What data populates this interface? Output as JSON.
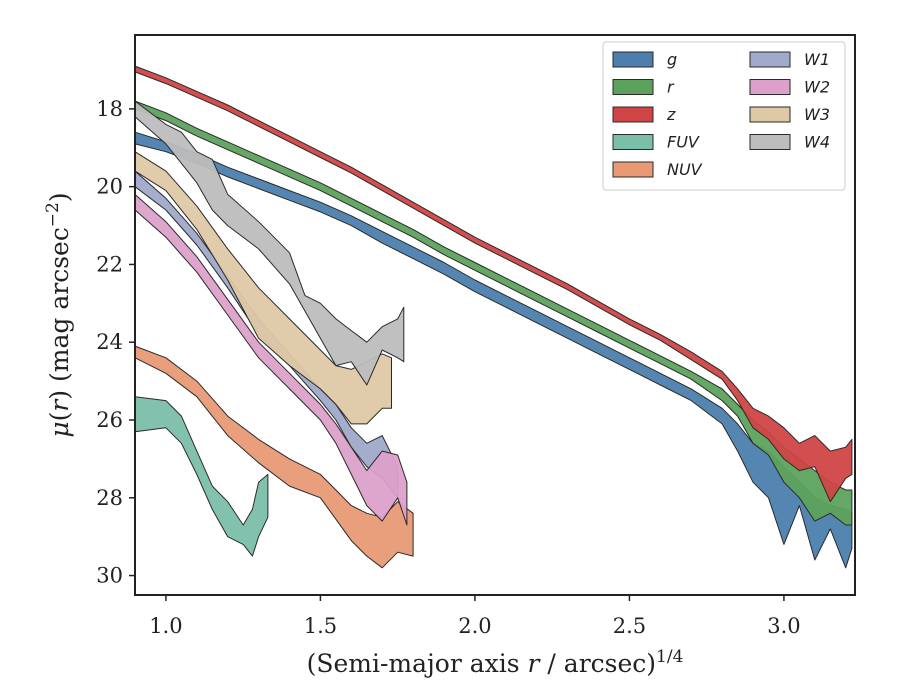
{
  "chart_data": {
    "type": "area",
    "xlabel": "(Semi-major axis r / arcsec)",
    "xlabel_italic_part": "r",
    "xlabel_superscript": "1/4",
    "ylabel_prefix": "μ(",
    "ylabel_italic": "r",
    "ylabel_suffix": ") (mag arcsec",
    "ylabel_superscript": "−2",
    "ylabel_close": ")",
    "xlim": [
      0.9,
      3.23
    ],
    "ylim": [
      30.5,
      16.1
    ],
    "y_inverted": true,
    "x_ticks": [
      1.0,
      1.5,
      2.0,
      2.5,
      3.0
    ],
    "x_tick_labels": [
      "1.0",
      "1.5",
      "2.0",
      "2.5",
      "3.0"
    ],
    "y_ticks": [
      18,
      20,
      22,
      24,
      26,
      28,
      30
    ],
    "y_tick_labels": [
      "18",
      "20",
      "22",
      "24",
      "26",
      "28",
      "30"
    ],
    "grid": false,
    "legend_position": "top-right",
    "legend_columns": 2,
    "series": [
      {
        "name": "g",
        "color": "#4c7fad",
        "x": [
          0.9,
          1.0,
          1.1,
          1.2,
          1.3,
          1.4,
          1.5,
          1.6,
          1.7,
          1.8,
          1.9,
          2.0,
          2.1,
          2.2,
          2.3,
          2.4,
          2.5,
          2.6,
          2.7,
          2.8,
          2.85,
          2.9,
          2.95,
          3.0,
          3.05,
          3.1,
          3.15,
          3.2,
          3.22
        ],
        "lower": [
          18.6,
          18.85,
          19.15,
          19.5,
          19.8,
          20.1,
          20.4,
          20.75,
          21.15,
          21.55,
          21.95,
          22.4,
          22.8,
          23.2,
          23.6,
          24.0,
          24.4,
          24.8,
          25.2,
          25.7,
          26.1,
          26.6,
          26.8,
          27.2,
          27.6,
          28.0,
          28.2,
          28.3,
          28.4
        ],
        "upper": [
          18.9,
          19.1,
          19.4,
          19.75,
          20.05,
          20.35,
          20.65,
          21.0,
          21.45,
          21.85,
          22.25,
          22.7,
          23.1,
          23.5,
          23.9,
          24.3,
          24.7,
          25.1,
          25.5,
          26.1,
          26.8,
          27.6,
          28.0,
          29.2,
          28.2,
          29.6,
          28.8,
          29.8,
          29.3
        ]
      },
      {
        "name": "r",
        "color": "#5da25c",
        "x": [
          0.9,
          1.0,
          1.1,
          1.2,
          1.3,
          1.4,
          1.5,
          1.6,
          1.7,
          1.8,
          1.9,
          2.0,
          2.1,
          2.2,
          2.3,
          2.4,
          2.5,
          2.6,
          2.7,
          2.8,
          2.85,
          2.9,
          2.95,
          3.0,
          3.05,
          3.1,
          3.15,
          3.2,
          3.22
        ],
        "lower": [
          17.8,
          18.1,
          18.5,
          18.85,
          19.2,
          19.55,
          19.9,
          20.3,
          20.7,
          21.1,
          21.55,
          21.95,
          22.35,
          22.75,
          23.15,
          23.55,
          23.95,
          24.35,
          24.75,
          25.2,
          25.6,
          26.0,
          26.3,
          26.7,
          27.0,
          27.3,
          27.6,
          27.8,
          27.8
        ],
        "upper": [
          18.0,
          18.3,
          18.7,
          19.05,
          19.4,
          19.75,
          20.1,
          20.5,
          20.9,
          21.3,
          21.75,
          22.15,
          22.55,
          22.95,
          23.35,
          23.75,
          24.15,
          24.55,
          24.95,
          25.5,
          25.9,
          26.6,
          26.9,
          27.6,
          28.0,
          28.6,
          28.4,
          28.7,
          28.7
        ]
      },
      {
        "name": "z",
        "color": "#d04446",
        "x": [
          0.9,
          1.0,
          1.1,
          1.2,
          1.3,
          1.4,
          1.5,
          1.6,
          1.7,
          1.8,
          1.9,
          2.0,
          2.1,
          2.2,
          2.3,
          2.4,
          2.5,
          2.6,
          2.7,
          2.8,
          2.85,
          2.9,
          2.95,
          3.0,
          3.05,
          3.1,
          3.15,
          3.2,
          3.22
        ],
        "lower": [
          16.9,
          17.2,
          17.55,
          17.9,
          18.3,
          18.7,
          19.1,
          19.5,
          19.95,
          20.4,
          20.85,
          21.3,
          21.7,
          22.1,
          22.5,
          22.95,
          23.4,
          23.8,
          24.25,
          24.75,
          25.2,
          25.7,
          25.9,
          26.2,
          26.6,
          26.4,
          26.8,
          26.7,
          26.5
        ],
        "upper": [
          17.05,
          17.35,
          17.7,
          18.05,
          18.45,
          18.85,
          19.25,
          19.65,
          20.1,
          20.55,
          21.0,
          21.45,
          21.85,
          22.25,
          22.65,
          23.1,
          23.55,
          23.95,
          24.45,
          24.95,
          25.5,
          26.2,
          26.5,
          27.0,
          27.3,
          27.2,
          28.1,
          27.5,
          27.4
        ]
      },
      {
        "name": "FUV",
        "color": "#7bbea9",
        "x": [
          0.9,
          1.0,
          1.05,
          1.1,
          1.15,
          1.2,
          1.25,
          1.28,
          1.3,
          1.33
        ],
        "lower": [
          25.4,
          25.5,
          25.9,
          26.8,
          27.7,
          28.1,
          28.7,
          28.3,
          27.6,
          27.4
        ],
        "upper": [
          26.3,
          26.2,
          26.6,
          27.4,
          28.3,
          29.0,
          29.2,
          29.5,
          29.0,
          28.5
        ]
      },
      {
        "name": "NUV",
        "color": "#e99a75",
        "x": [
          0.9,
          1.0,
          1.1,
          1.2,
          1.3,
          1.4,
          1.5,
          1.6,
          1.65,
          1.7,
          1.75,
          1.8
        ],
        "lower": [
          24.1,
          24.4,
          25.0,
          25.9,
          26.5,
          27.0,
          27.4,
          28.2,
          28.4,
          28.5,
          28.1,
          28.4
        ],
        "upper": [
          24.4,
          24.8,
          25.4,
          26.4,
          27.1,
          27.7,
          28.0,
          29.1,
          29.5,
          29.8,
          29.4,
          29.5
        ]
      },
      {
        "name": "W1",
        "color": "#9fa9c9",
        "x": [
          0.9,
          1.0,
          1.1,
          1.2,
          1.3,
          1.4,
          1.5,
          1.55,
          1.6,
          1.65,
          1.7,
          1.75
        ],
        "lower": [
          19.6,
          20.3,
          21.2,
          22.3,
          23.4,
          24.3,
          25.2,
          25.6,
          26.2,
          26.6,
          26.4,
          27.2
        ],
        "upper": [
          20.0,
          20.6,
          21.5,
          22.6,
          23.8,
          24.6,
          25.5,
          26.0,
          26.7,
          27.2,
          27.5,
          28.0
        ]
      },
      {
        "name": "W2",
        "color": "#dca0ca",
        "x": [
          0.9,
          1.0,
          1.1,
          1.2,
          1.3,
          1.4,
          1.5,
          1.55,
          1.6,
          1.65,
          1.7,
          1.75,
          1.78
        ],
        "lower": [
          20.2,
          20.9,
          21.8,
          22.9,
          24.0,
          24.8,
          25.6,
          26.1,
          26.7,
          27.3,
          26.8,
          26.9,
          27.6
        ],
        "upper": [
          20.6,
          21.3,
          22.2,
          23.3,
          24.4,
          25.2,
          26.0,
          26.6,
          27.4,
          28.2,
          28.6,
          28.0,
          28.7
        ]
      },
      {
        "name": "W3",
        "color": "#dec8a5",
        "x": [
          0.9,
          1.0,
          1.1,
          1.2,
          1.3,
          1.4,
          1.5,
          1.55,
          1.6,
          1.65,
          1.7,
          1.73
        ],
        "lower": [
          19.1,
          19.6,
          20.5,
          21.6,
          22.6,
          23.4,
          24.2,
          24.6,
          24.7,
          24.5,
          24.3,
          24.4
        ],
        "upper": [
          19.6,
          20.1,
          21.1,
          22.4,
          23.9,
          24.6,
          25.2,
          25.6,
          26.1,
          26.1,
          25.7,
          25.7
        ]
      },
      {
        "name": "W4",
        "color": "#bdbdbd",
        "x": [
          0.9,
          1.0,
          1.05,
          1.1,
          1.15,
          1.2,
          1.3,
          1.4,
          1.45,
          1.5,
          1.55,
          1.6,
          1.65,
          1.7,
          1.75,
          1.77
        ],
        "lower": [
          17.8,
          18.4,
          18.6,
          19.1,
          19.3,
          20.2,
          20.9,
          21.7,
          22.8,
          23.0,
          23.4,
          23.7,
          24.0,
          23.6,
          23.4,
          23.1
        ],
        "upper": [
          18.2,
          18.9,
          19.4,
          19.9,
          20.6,
          21.0,
          21.6,
          22.5,
          23.2,
          23.9,
          24.6,
          24.5,
          25.1,
          24.2,
          24.4,
          24.5
        ]
      }
    ]
  }
}
